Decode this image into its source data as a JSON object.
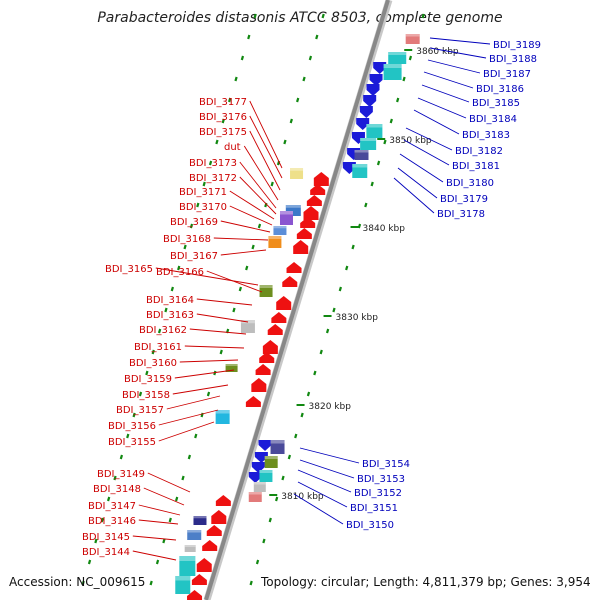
{
  "title": "Parabacteroides distasonis ATCC 8503, complete genome",
  "accession": "Accession: NC_009615",
  "topology": "Topology: circular; Length: 4,811,379 bp; Genes: 3,954",
  "colors": {
    "forward_gene": "#ee1111",
    "reverse_gene": "#1b1bd8",
    "left_label": "#cc0000",
    "right_label": "#0000bb",
    "backbone": "#888888",
    "tick": "#118811"
  },
  "scale_labels": [
    "3860 kbp",
    "3850 kbp",
    "3840 kbp",
    "3830 kbp",
    "3820 kbp",
    "3810 kbp"
  ],
  "left_genes": [
    "BDI_3177",
    "BDI_3176",
    "BDI_3175",
    "dut",
    "BDI_3173",
    "BDI_3172",
    "BDI_3171",
    "BDI_3170",
    "BDI_3169",
    "BDI_3168",
    "BDI_3167",
    "BDI_3165",
    "BDI_3166",
    "BDI_3164",
    "BDI_3163",
    "BDI_3162",
    "BDI_3161",
    "BDI_3160",
    "BDI_3159",
    "BDI_3158",
    "BDI_3157",
    "BDI_3156",
    "BDI_3155",
    "BDI_3149",
    "BDI_3148",
    "BDI_3147",
    "BDI_3146",
    "BDI_3145",
    "BDI_3144"
  ],
  "right_genes_top": [
    "BDI_3189",
    "BDI_3188",
    "BDI_3187",
    "BDI_3186",
    "BDI_3185",
    "BDI_3184",
    "BDI_3183",
    "BDI_3182",
    "BDI_3181",
    "BDI_3180",
    "BDI_3179",
    "BDI_3178"
  ],
  "right_genes_bottom": [
    "BDI_3154",
    "BDI_3153",
    "BDI_3152",
    "BDI_3151",
    "BDI_3150"
  ]
}
